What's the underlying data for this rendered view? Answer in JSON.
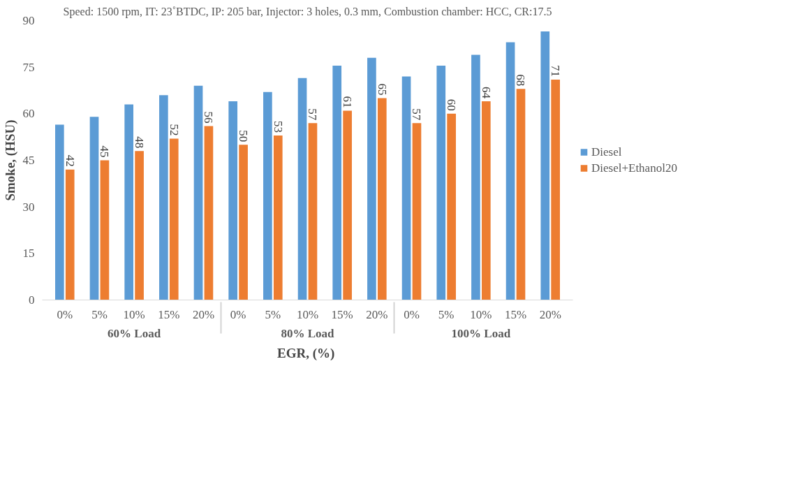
{
  "chart_data": {
    "type": "bar",
    "title": "Speed: 1500 rpm, IT: 23˚BTDC, IP: 205 bar, Injector: 3 holes, 0.3 mm, Combustion chamber: HCC, CR:17.5",
    "xlabel": "EGR,  (%)",
    "ylabel": "Smoke, (HSU)",
    "categories": [
      "0%",
      "5%",
      "10%",
      "15%",
      "20%",
      "0%",
      "5%",
      "10%",
      "15%",
      "20%",
      "0%",
      "5%",
      "10%",
      "15%",
      "20%"
    ],
    "annotations": [
      "60% Load",
      "80% Load",
      "100% Load"
    ],
    "series": [
      {
        "name": "Diesel",
        "color": "#5b9bd5",
        "values": [
          56.5,
          59,
          63,
          66,
          69,
          64,
          67,
          71.5,
          75.5,
          78,
          72,
          75.5,
          79,
          83,
          86.5
        ]
      },
      {
        "name": "Diesel+Ethanol20",
        "color": "#ed7d31",
        "values": [
          42,
          45,
          48,
          52,
          56,
          50,
          53,
          57,
          61,
          65,
          57,
          60,
          64,
          68,
          71
        ],
        "value_labels": [
          "42",
          "45",
          "48",
          "52",
          "56",
          "50",
          "53",
          "57",
          "61",
          "65",
          "57",
          "60",
          "64",
          "68",
          "71"
        ]
      }
    ],
    "ylim": [
      0,
      90
    ],
    "yticks": [
      0,
      15,
      30,
      45,
      60,
      75,
      90
    ],
    "grid": false,
    "legend": "right"
  }
}
